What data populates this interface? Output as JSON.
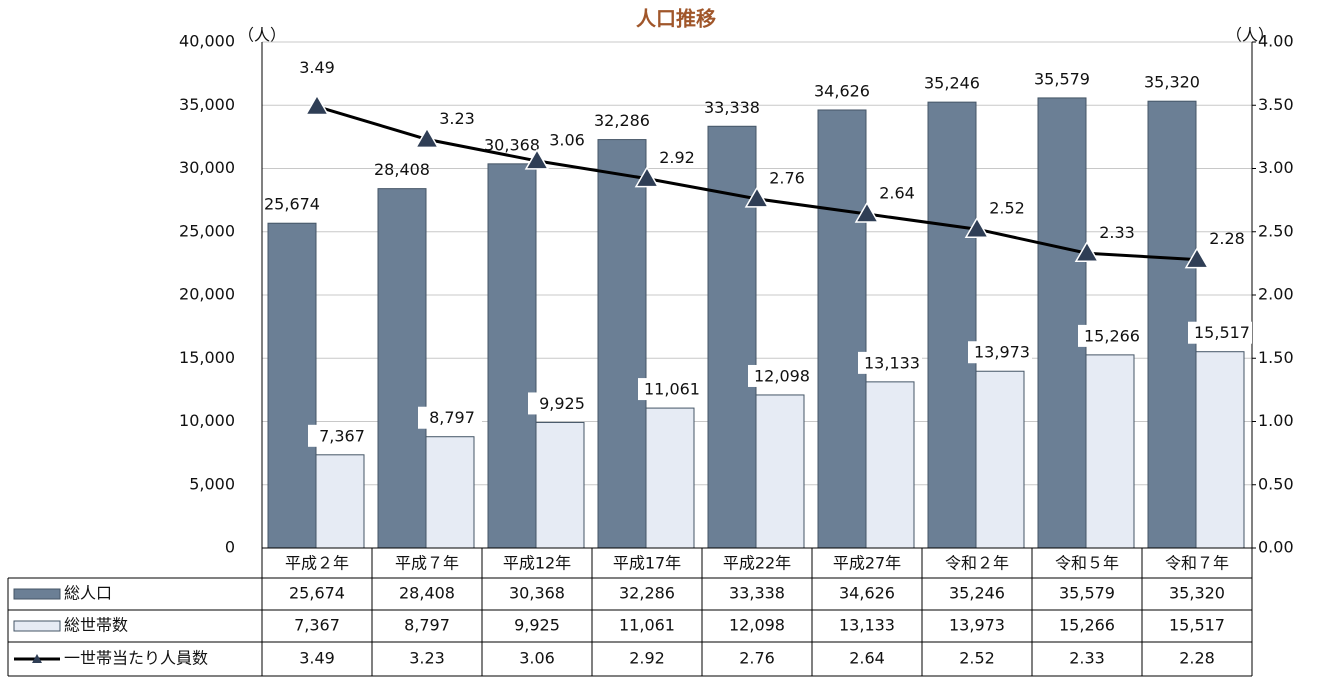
{
  "chart_data": {
    "type": "bar",
    "title": "人口推移",
    "y_label": "（人）",
    "y2_label": "（人）",
    "categories": [
      "平成２年",
      "平成７年",
      "平成12年",
      "平成17年",
      "平成22年",
      "平成27年",
      "令和２年",
      "令和５年",
      "令和７年"
    ],
    "series": [
      {
        "name": "総人口",
        "color": "#6b7f95",
        "values": [
          25674,
          28408,
          30368,
          32286,
          33338,
          34626,
          35246,
          35579,
          35320
        ],
        "value_labels": [
          "25,674",
          "28,408",
          "30,368",
          "32,286",
          "33,338",
          "34,626",
          "35,246",
          "35,579",
          "35,320"
        ]
      },
      {
        "name": "総世帯数",
        "color": "#e6ebf4",
        "values": [
          7367,
          8797,
          9925,
          11061,
          12098,
          13133,
          13973,
          15266,
          15517
        ],
        "value_labels": [
          "7,367",
          "8,797",
          "9,925",
          "11,061",
          "12,098",
          "13,133",
          "13,973",
          "15,266",
          "15,517"
        ]
      },
      {
        "name": "一世帯当たり人員数",
        "color": "#000000",
        "marker_color": "#2f3e55",
        "type": "line",
        "axis": "y2",
        "values": [
          3.49,
          3.23,
          3.06,
          2.92,
          2.76,
          2.64,
          2.52,
          2.33,
          2.28
        ]
      }
    ],
    "ylim": [
      0,
      40000
    ],
    "yticks": [
      0,
      {
        "value": 5000,
        "label": "5,000"
      },
      {
        "value": 10000,
        "label": "10,000"
      },
      {
        "value": 15000,
        "label": "15,000"
      },
      {
        "value": 20000,
        "label": "20,000"
      },
      {
        "value": 25000,
        "label": "25,000"
      },
      {
        "value": 30000,
        "label": "30,000"
      },
      {
        "value": 35000,
        "label": "35,000"
      },
      {
        "value": 40000,
        "label": "40,000"
      }
    ],
    "y2lim": [
      0,
      4
    ],
    "y2ticks": [
      {
        "value": 0,
        "label": "0.00"
      },
      {
        "value": 0.5,
        "label": "0.50"
      },
      {
        "value": 1,
        "label": "1.00"
      },
      {
        "value": 1.5,
        "label": "1.50"
      },
      {
        "value": 2,
        "label": "2.00"
      },
      {
        "value": 2.5,
        "label": "2.50"
      },
      {
        "value": 3,
        "label": "3.00"
      },
      {
        "value": 3.5,
        "label": "3.50"
      },
      {
        "value": 4,
        "label": "4.00"
      }
    ],
    "grid": true,
    "data_table": true
  }
}
